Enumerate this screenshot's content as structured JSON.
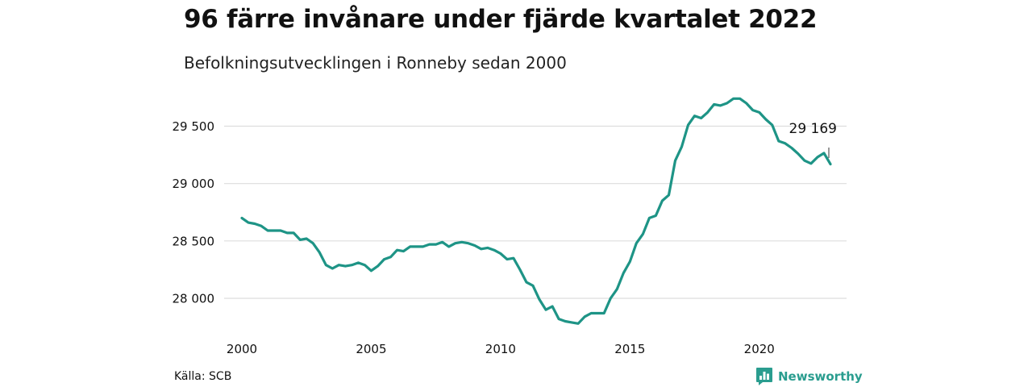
{
  "header": {
    "title": "96 färre invånare under fjärde kvartalet 2022",
    "subtitle": "Befolkningsutvecklingen i Ronneby sedan 2000"
  },
  "footer": {
    "source": "Källa: SCB",
    "brand": "Newsworthy",
    "brand_icon": "newsworthy-logo-icon"
  },
  "colors": {
    "line": "#1e9486",
    "grid": "#dddddd",
    "brand": "#2a9d8f"
  },
  "chart_data": {
    "type": "line",
    "title": "96 färre invånare under fjärde kvartalet 2022",
    "subtitle": "Befolkningsutvecklingen i Ronneby sedan 2000",
    "xlabel": "",
    "ylabel": "",
    "xlim": [
      2000,
      2022.75
    ],
    "ylim": [
      27800,
      29800
    ],
    "grid": "horizontal",
    "legend": "none",
    "x_ticks": [
      2000,
      2005,
      2010,
      2015,
      2020
    ],
    "x_tick_labels": [
      "2000",
      "2005",
      "2010",
      "2015",
      "2020"
    ],
    "y_ticks": [
      28000,
      28500,
      29000,
      29500
    ],
    "y_tick_labels": [
      "28 000",
      "28 500",
      "29 000",
      "29 500"
    ],
    "end_label": "29 169",
    "series": [
      {
        "x": [
          2000.0,
          2000.25,
          2000.5,
          2000.75,
          2001.0,
          2001.25,
          2001.5,
          2001.75,
          2002.0,
          2002.25,
          2002.5,
          2002.75,
          2003.0,
          2003.25,
          2003.5,
          2003.75,
          2004.0,
          2004.25,
          2004.5,
          2004.75,
          2005.0,
          2005.25,
          2005.5,
          2005.75,
          2006.0,
          2006.25,
          2006.5,
          2006.75,
          2007.0,
          2007.25,
          2007.5,
          2007.75,
          2008.0,
          2008.25,
          2008.5,
          2008.75,
          2009.0,
          2009.25,
          2009.5,
          2009.75,
          2010.0,
          2010.25,
          2010.5,
          2010.75,
          2011.0,
          2011.25,
          2011.5,
          2011.75,
          2012.0,
          2012.25,
          2012.5,
          2012.75,
          2013.0,
          2013.25,
          2013.5,
          2013.75,
          2014.0,
          2014.25,
          2014.5,
          2014.75,
          2015.0,
          2015.25,
          2015.5,
          2015.75,
          2016.0,
          2016.25,
          2016.5,
          2016.75,
          2017.0,
          2017.25,
          2017.5,
          2017.75,
          2018.0,
          2018.25,
          2018.5,
          2018.75,
          2019.0,
          2019.25,
          2019.5,
          2019.75,
          2020.0,
          2020.25,
          2020.5,
          2020.75,
          2021.0,
          2021.25,
          2021.5,
          2021.75,
          2022.0,
          2022.25,
          2022.5,
          2022.75
        ],
        "y": [
          28700,
          28660,
          28650,
          28630,
          28590,
          28590,
          28590,
          28570,
          28570,
          28510,
          28520,
          28480,
          28400,
          28290,
          28260,
          28290,
          28280,
          28290,
          28310,
          28290,
          28240,
          28280,
          28340,
          28360,
          28420,
          28410,
          28450,
          28450,
          28450,
          28470,
          28470,
          28490,
          28450,
          28480,
          28490,
          28480,
          28460,
          28430,
          28440,
          28420,
          28390,
          28340,
          28350,
          28250,
          28140,
          28110,
          27990,
          27900,
          27930,
          27820,
          27800,
          27790,
          27780,
          27840,
          27870,
          27870,
          27870,
          28000,
          28080,
          28220,
          28320,
          28480,
          28560,
          28700,
          28720,
          28850,
          28900,
          29200,
          29320,
          29510,
          29590,
          29570,
          29620,
          29690,
          29680,
          29700,
          29740,
          29740,
          29700,
          29640,
          29620,
          29560,
          29510,
          29370,
          29350,
          29310,
          29260,
          29200,
          29175,
          29230,
          29265,
          29169
        ]
      }
    ]
  }
}
